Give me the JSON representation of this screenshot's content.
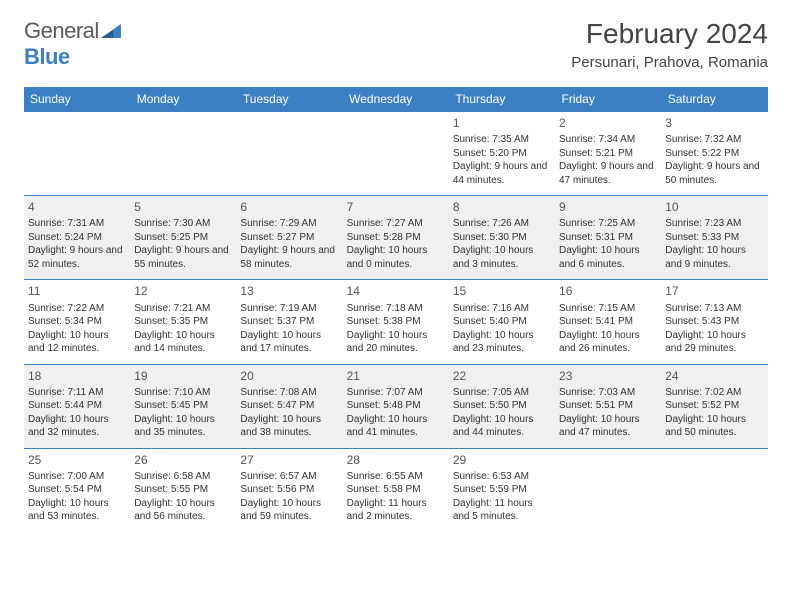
{
  "brand": {
    "name_a": "General",
    "name_b": "Blue"
  },
  "title": "February 2024",
  "location": "Persunari, Prahova, Romania",
  "columns": [
    "Sunday",
    "Monday",
    "Tuesday",
    "Wednesday",
    "Thursday",
    "Friday",
    "Saturday"
  ],
  "colors": {
    "header_bg": "#3b7fc4",
    "header_fg": "#ffffff",
    "row_alt_bg": "#f0f0f0",
    "row_bg": "#ffffff",
    "border": "#3b7fc4",
    "text": "#333333",
    "logo_gray": "#5a5a5a",
    "logo_blue": "#3b7fc4"
  },
  "weeks": [
    {
      "alt": false,
      "days": [
        null,
        null,
        null,
        null,
        {
          "n": "1",
          "sunrise": "7:35 AM",
          "sunset": "5:20 PM",
          "daylight": "9 hours and 44 minutes."
        },
        {
          "n": "2",
          "sunrise": "7:34 AM",
          "sunset": "5:21 PM",
          "daylight": "9 hours and 47 minutes."
        },
        {
          "n": "3",
          "sunrise": "7:32 AM",
          "sunset": "5:22 PM",
          "daylight": "9 hours and 50 minutes."
        }
      ]
    },
    {
      "alt": true,
      "days": [
        {
          "n": "4",
          "sunrise": "7:31 AM",
          "sunset": "5:24 PM",
          "daylight": "9 hours and 52 minutes."
        },
        {
          "n": "5",
          "sunrise": "7:30 AM",
          "sunset": "5:25 PM",
          "daylight": "9 hours and 55 minutes."
        },
        {
          "n": "6",
          "sunrise": "7:29 AM",
          "sunset": "5:27 PM",
          "daylight": "9 hours and 58 minutes."
        },
        {
          "n": "7",
          "sunrise": "7:27 AM",
          "sunset": "5:28 PM",
          "daylight": "10 hours and 0 minutes."
        },
        {
          "n": "8",
          "sunrise": "7:26 AM",
          "sunset": "5:30 PM",
          "daylight": "10 hours and 3 minutes."
        },
        {
          "n": "9",
          "sunrise": "7:25 AM",
          "sunset": "5:31 PM",
          "daylight": "10 hours and 6 minutes."
        },
        {
          "n": "10",
          "sunrise": "7:23 AM",
          "sunset": "5:33 PM",
          "daylight": "10 hours and 9 minutes."
        }
      ]
    },
    {
      "alt": false,
      "days": [
        {
          "n": "11",
          "sunrise": "7:22 AM",
          "sunset": "5:34 PM",
          "daylight": "10 hours and 12 minutes."
        },
        {
          "n": "12",
          "sunrise": "7:21 AM",
          "sunset": "5:35 PM",
          "daylight": "10 hours and 14 minutes."
        },
        {
          "n": "13",
          "sunrise": "7:19 AM",
          "sunset": "5:37 PM",
          "daylight": "10 hours and 17 minutes."
        },
        {
          "n": "14",
          "sunrise": "7:18 AM",
          "sunset": "5:38 PM",
          "daylight": "10 hours and 20 minutes."
        },
        {
          "n": "15",
          "sunrise": "7:16 AM",
          "sunset": "5:40 PM",
          "daylight": "10 hours and 23 minutes."
        },
        {
          "n": "16",
          "sunrise": "7:15 AM",
          "sunset": "5:41 PM",
          "daylight": "10 hours and 26 minutes."
        },
        {
          "n": "17",
          "sunrise": "7:13 AM",
          "sunset": "5:43 PM",
          "daylight": "10 hours and 29 minutes."
        }
      ]
    },
    {
      "alt": true,
      "days": [
        {
          "n": "18",
          "sunrise": "7:11 AM",
          "sunset": "5:44 PM",
          "daylight": "10 hours and 32 minutes."
        },
        {
          "n": "19",
          "sunrise": "7:10 AM",
          "sunset": "5:45 PM",
          "daylight": "10 hours and 35 minutes."
        },
        {
          "n": "20",
          "sunrise": "7:08 AM",
          "sunset": "5:47 PM",
          "daylight": "10 hours and 38 minutes."
        },
        {
          "n": "21",
          "sunrise": "7:07 AM",
          "sunset": "5:48 PM",
          "daylight": "10 hours and 41 minutes."
        },
        {
          "n": "22",
          "sunrise": "7:05 AM",
          "sunset": "5:50 PM",
          "daylight": "10 hours and 44 minutes."
        },
        {
          "n": "23",
          "sunrise": "7:03 AM",
          "sunset": "5:51 PM",
          "daylight": "10 hours and 47 minutes."
        },
        {
          "n": "24",
          "sunrise": "7:02 AM",
          "sunset": "5:52 PM",
          "daylight": "10 hours and 50 minutes."
        }
      ]
    },
    {
      "alt": false,
      "days": [
        {
          "n": "25",
          "sunrise": "7:00 AM",
          "sunset": "5:54 PM",
          "daylight": "10 hours and 53 minutes."
        },
        {
          "n": "26",
          "sunrise": "6:58 AM",
          "sunset": "5:55 PM",
          "daylight": "10 hours and 56 minutes."
        },
        {
          "n": "27",
          "sunrise": "6:57 AM",
          "sunset": "5:56 PM",
          "daylight": "10 hours and 59 minutes."
        },
        {
          "n": "28",
          "sunrise": "6:55 AM",
          "sunset": "5:58 PM",
          "daylight": "11 hours and 2 minutes."
        },
        {
          "n": "29",
          "sunrise": "6:53 AM",
          "sunset": "5:59 PM",
          "daylight": "11 hours and 5 minutes."
        },
        null,
        null
      ]
    }
  ],
  "labels": {
    "sunrise": "Sunrise:",
    "sunset": "Sunset:",
    "daylight": "Daylight:"
  }
}
